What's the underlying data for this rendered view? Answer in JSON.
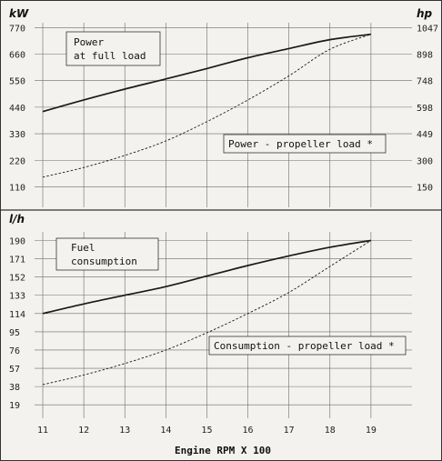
{
  "chart_data": [
    {
      "type": "line",
      "units_left": "kW",
      "units_right": "hp",
      "x": [
        11,
        12,
        13,
        14,
        15,
        16,
        17,
        18,
        19
      ],
      "xlim": [
        10.8,
        20.0
      ],
      "ylim": [
        25,
        790
      ],
      "yticks_left": [
        110,
        220,
        330,
        440,
        550,
        660,
        770
      ],
      "yticks_left_labels": [
        "110",
        "220",
        "330",
        "440",
        "550",
        "660",
        "770"
      ],
      "yticks_right_values": [
        110,
        220,
        330,
        440,
        550,
        660,
        770
      ],
      "yticks_right_labels": [
        "150",
        "300",
        "449",
        "598",
        "748",
        "898",
        "1047"
      ],
      "series": [
        {
          "name": "Power at full load",
          "style": "solid",
          "values": [
            422,
            470,
            515,
            557,
            600,
            645,
            683,
            720,
            742
          ]
        },
        {
          "name": "Power - propeller load *",
          "style": "dashed",
          "values": [
            150,
            190,
            240,
            300,
            380,
            470,
            570,
            680,
            742
          ]
        }
      ],
      "annotations": [
        {
          "text_lines": [
            "Power",
            "at full load"
          ]
        },
        {
          "text_lines": [
            "Power - propeller load *"
          ]
        }
      ]
    },
    {
      "type": "line",
      "units_left": "l/h",
      "x": [
        11,
        12,
        13,
        14,
        15,
        16,
        17,
        18,
        19
      ],
      "xticks": [
        "11",
        "12",
        "13",
        "14",
        "15",
        "16",
        "17",
        "18",
        "19"
      ],
      "xlabel": "Engine RPM X 100",
      "xlim": [
        10.8,
        20.0
      ],
      "ylim": [
        5,
        199
      ],
      "yticks_left": [
        19,
        38,
        57,
        76,
        95,
        114,
        133,
        152,
        171,
        190
      ],
      "yticks_left_labels": [
        "19",
        "38",
        "57",
        "76",
        "95",
        "114",
        "133",
        "152",
        "171",
        "190"
      ],
      "series": [
        {
          "name": "Fuel consumption",
          "style": "solid",
          "values": [
            114,
            124,
            133,
            142,
            153,
            164,
            174,
            183,
            190
          ]
        },
        {
          "name": "Consumption - propeller load *",
          "style": "dashed",
          "values": [
            40,
            50,
            62,
            76,
            94,
            114,
            136,
            163,
            190
          ]
        }
      ],
      "annotations": [
        {
          "text_lines": [
            "Fuel",
            "consumption"
          ]
        },
        {
          "text_lines": [
            "Consumption - propeller load *"
          ]
        }
      ]
    }
  ],
  "colors": {
    "background": "#f3f2ee",
    "grid": "#6c6c6c",
    "line": "#1a1a1a"
  }
}
